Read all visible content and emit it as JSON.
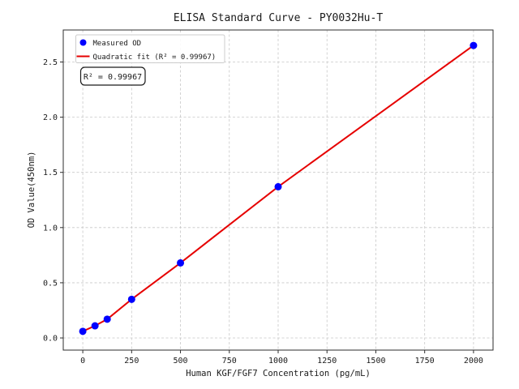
{
  "title": "ELISA Standard Curve - PY0032Hu-T",
  "legend": {
    "measured_label": "Measured OD",
    "fit_label": "Quadratic fit (R² = 0.99967)"
  },
  "annotation": {
    "text": "R² = 0.99967"
  },
  "colors": {
    "marker_blue": "#0000ff",
    "fit_red": "#e60000",
    "grid_gray": "#c8c8c8",
    "spine_dark": "#2e2e2e",
    "legend_border": "#cccccc"
  },
  "chart_data": {
    "type": "scatter",
    "title": "ELISA Standard Curve - PY0032Hu-T",
    "xlabel": "Human KGF/FGF7 Concentration (pg/mL)",
    "ylabel": "OD Value(450nm)",
    "x": [
      0,
      62.5,
      125,
      250,
      500,
      1000,
      2000
    ],
    "series": [
      {
        "name": "Measured OD",
        "type": "scatter",
        "marker": "circle",
        "color": "#0000ff",
        "y": [
          0.06,
          0.11,
          0.17,
          0.35,
          0.68,
          1.37,
          2.65
        ]
      },
      {
        "name": "Quadratic fit (R² = 0.99967)",
        "type": "line",
        "color": "#e60000",
        "r_squared": 0.99967,
        "y": [
          0.06,
          0.11,
          0.17,
          0.35,
          0.68,
          1.37,
          2.65
        ]
      }
    ],
    "xticks": {
      "values": [
        0,
        250,
        500,
        750,
        1000,
        1250,
        1500,
        1750,
        2000
      ],
      "labels": [
        "0",
        "250",
        "500",
        "750",
        "1000",
        "1250",
        "1500",
        "1750",
        "2000"
      ]
    },
    "yticks": {
      "values": [
        0.0,
        0.5,
        1.0,
        1.5,
        2.0,
        2.5
      ],
      "labels": [
        "0.0",
        "0.5",
        "1.0",
        "1.5",
        "2.0",
        "2.5"
      ]
    },
    "xlim": [
      -100,
      2100
    ],
    "ylim": [
      -0.11,
      2.79
    ],
    "grid": true,
    "grid_style": "dashed",
    "legend_position": "upper left",
    "annotation": "R² = 0.99967"
  }
}
